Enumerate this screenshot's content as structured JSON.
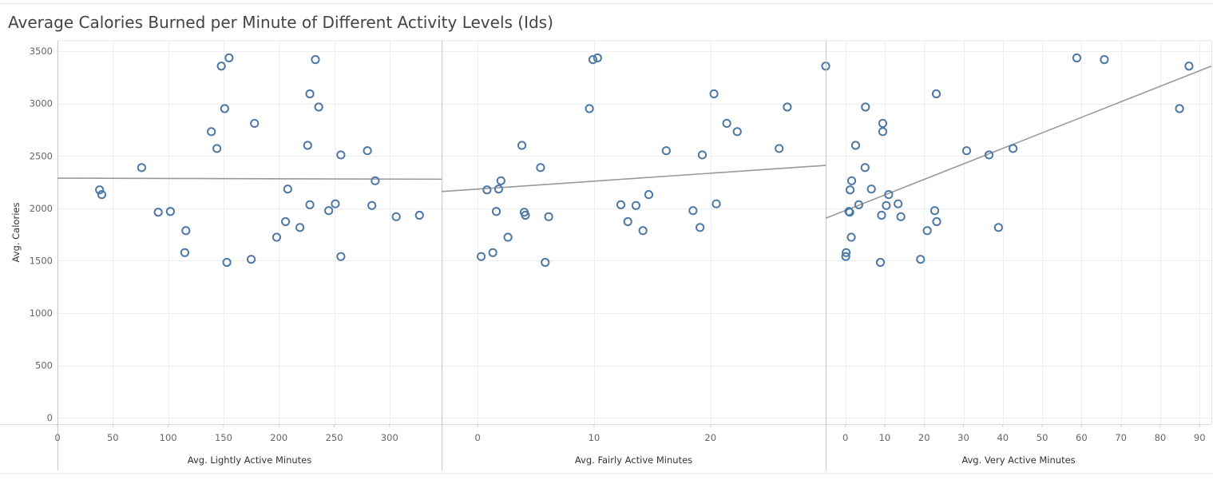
{
  "title": "Average Calories Burned per Minute of Different Activity Levels (Ids)",
  "colors": {
    "point": "#4e79a7",
    "trend": "#999999",
    "grid": "#eeeeee",
    "divider": "#c8c8c8"
  },
  "chart_data": [
    {
      "type": "scatter",
      "xlabel": "Avg. Lightly Active Minutes",
      "ylabel": "Avg. Calories",
      "xlim": [
        0,
        347
      ],
      "ylim": [
        -60,
        3600
      ],
      "xticks": [
        0,
        50,
        100,
        150,
        200,
        250,
        300
      ],
      "yticks": [
        0,
        500,
        1000,
        1500,
        2000,
        2500,
        3000,
        3500
      ],
      "grid": true,
      "trendline": [
        [
          0,
          2288
        ],
        [
          347,
          2278
        ]
      ],
      "points": [
        [
          38,
          2176
        ],
        [
          40,
          2131
        ],
        [
          76,
          2389
        ],
        [
          91,
          1963
        ],
        [
          102,
          1970
        ],
        [
          116,
          1787
        ],
        [
          115,
          1577
        ],
        [
          139,
          2732
        ],
        [
          144,
          2571
        ],
        [
          148,
          3358
        ],
        [
          151,
          2952
        ],
        [
          155,
          3436
        ],
        [
          153,
          1484
        ],
        [
          175,
          1513
        ],
        [
          178,
          2811
        ],
        [
          198,
          1724
        ],
        [
          206,
          1873
        ],
        [
          208,
          2184
        ],
        [
          219,
          1817
        ],
        [
          226,
          2601
        ],
        [
          228,
          3093
        ],
        [
          228,
          2034
        ],
        [
          233,
          3420
        ],
        [
          236,
          2967
        ],
        [
          245,
          1978
        ],
        [
          251,
          2043
        ],
        [
          256,
          2510
        ],
        [
          256,
          1540
        ],
        [
          280,
          2550
        ],
        [
          284,
          2027
        ],
        [
          287,
          2263
        ],
        [
          306,
          1920
        ],
        [
          327,
          1934
        ]
      ]
    },
    {
      "type": "scatter",
      "xlabel": "Avg. Fairly Active Minutes",
      "ylim": [
        -60,
        3600
      ],
      "xlim": [
        -3.1,
        29.9
      ],
      "xticks": [
        0,
        10,
        20
      ],
      "grid": true,
      "trendline": [
        [
          -3.1,
          2160
        ],
        [
          29.9,
          2410
        ]
      ],
      "points": [
        [
          0.3,
          1540
        ],
        [
          0.8,
          2176
        ],
        [
          1.3,
          1577
        ],
        [
          1.6,
          1970
        ],
        [
          1.8,
          2184
        ],
        [
          2.0,
          2263
        ],
        [
          2.6,
          1724
        ],
        [
          3.8,
          2601
        ],
        [
          4.0,
          1963
        ],
        [
          4.1,
          1934
        ],
        [
          5.4,
          2389
        ],
        [
          5.8,
          1484
        ],
        [
          6.1,
          1920
        ],
        [
          9.6,
          2952
        ],
        [
          9.9,
          3420
        ],
        [
          10.3,
          3436
        ],
        [
          12.3,
          2034
        ],
        [
          12.9,
          1873
        ],
        [
          13.6,
          2027
        ],
        [
          14.2,
          1787
        ],
        [
          14.7,
          2131
        ],
        [
          16.2,
          2550
        ],
        [
          18.5,
          1978
        ],
        [
          19.1,
          1817
        ],
        [
          19.3,
          2510
        ],
        [
          20.3,
          3093
        ],
        [
          20.5,
          2043
        ],
        [
          21.4,
          2811
        ],
        [
          22.3,
          2732
        ],
        [
          25.9,
          2571
        ],
        [
          26.6,
          2967
        ],
        [
          29.9,
          3358
        ]
      ]
    },
    {
      "type": "scatter",
      "xlabel": "Avg. Very Active Minutes",
      "ylim": [
        -60,
        3600
      ],
      "xlim": [
        -5,
        93
      ],
      "xticks": [
        0,
        10,
        20,
        30,
        40,
        50,
        60,
        70,
        80,
        90
      ],
      "grid": true,
      "trendline": [
        [
          -5,
          1905
        ],
        [
          93,
          3358
        ]
      ],
      "points": [
        [
          0.1,
          1540
        ],
        [
          0.2,
          1577
        ],
        [
          0.9,
          1970
        ],
        [
          1.1,
          1963
        ],
        [
          1.2,
          2176
        ],
        [
          1.5,
          1724
        ],
        [
          1.6,
          2263
        ],
        [
          2.6,
          2601
        ],
        [
          3.4,
          2034
        ],
        [
          5.0,
          2389
        ],
        [
          5.1,
          2967
        ],
        [
          6.6,
          2184
        ],
        [
          8.9,
          1484
        ],
        [
          9.2,
          1934
        ],
        [
          9.5,
          2811
        ],
        [
          9.5,
          2732
        ],
        [
          10.4,
          2027
        ],
        [
          11.0,
          2131
        ],
        [
          13.4,
          2043
        ],
        [
          14.1,
          1920
        ],
        [
          19.1,
          1513
        ],
        [
          20.8,
          1787
        ],
        [
          22.7,
          1978
        ],
        [
          23.1,
          3093
        ],
        [
          23.2,
          1873
        ],
        [
          30.8,
          2550
        ],
        [
          36.5,
          2510
        ],
        [
          38.9,
          1817
        ],
        [
          42.6,
          2571
        ],
        [
          58.8,
          3436
        ],
        [
          65.8,
          3420
        ],
        [
          84.9,
          2952
        ],
        [
          87.3,
          3358
        ]
      ]
    }
  ]
}
